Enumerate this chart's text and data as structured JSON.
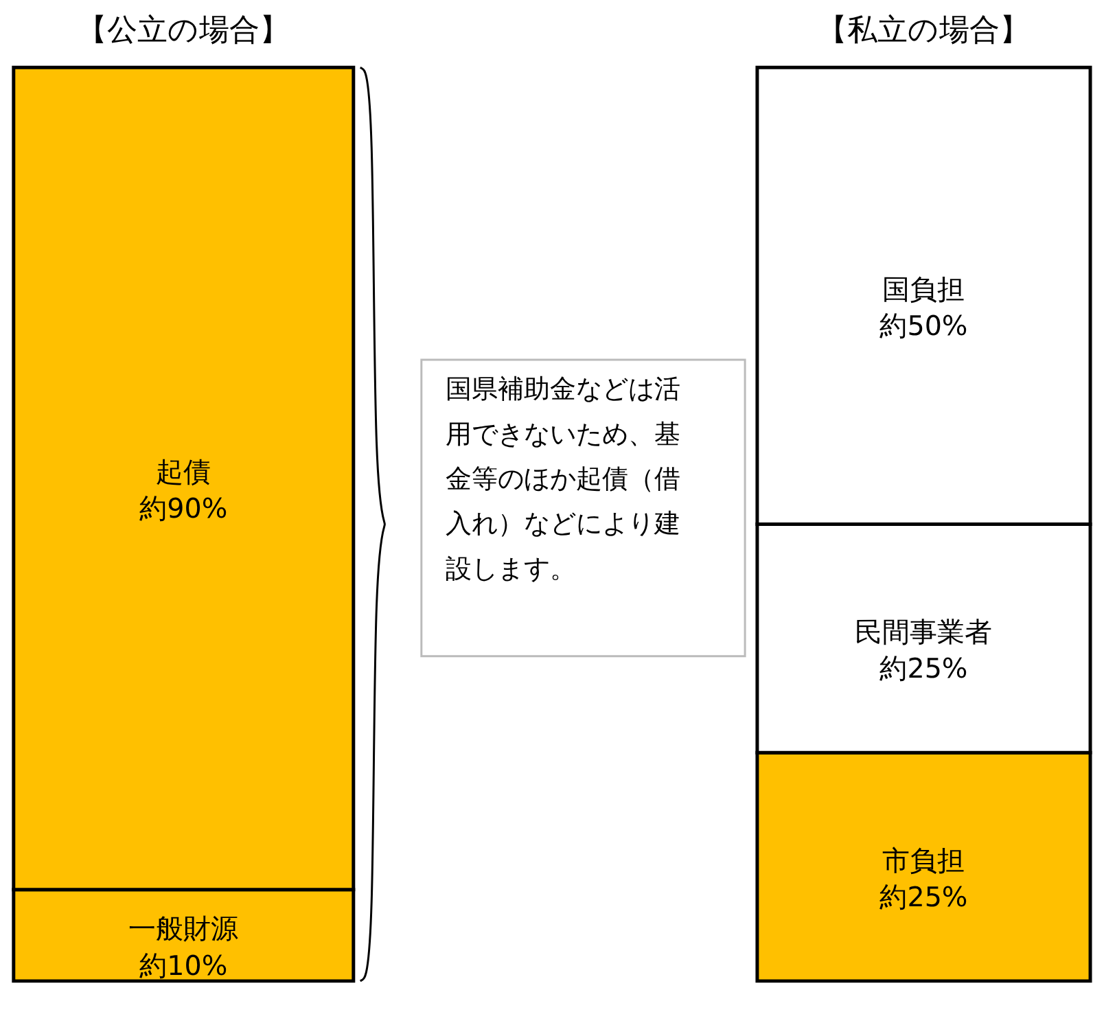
{
  "chart_data": [
    {
      "type": "bar",
      "stacked": true,
      "title": "【公立の場合】",
      "categories": [
        null
      ],
      "series": [
        {
          "name": "一般財源",
          "color": "#ffc000",
          "values": [
            10
          ],
          "value_labels": [
            "約10%"
          ]
        },
        {
          "name": "起債",
          "color": "#ffc000",
          "values": [
            90
          ],
          "value_labels": [
            "約90%"
          ]
        }
      ],
      "annotations": [
        "国県補助金などは活用できないため、基金等のほか起債（借入れ）などにより建設します。"
      ]
    },
    {
      "type": "bar",
      "stacked": true,
      "title": "【私立の場合】",
      "categories": [
        null
      ],
      "series": [
        {
          "name": "市負担",
          "color": "#ffc000",
          "values": [
            25
          ],
          "value_labels": [
            "約25%"
          ]
        },
        {
          "name": "民間事業者",
          "color": "#ffffff",
          "values": [
            25
          ],
          "value_labels": [
            "約25%"
          ]
        },
        {
          "name": "国負担",
          "color": "#ffffff",
          "values": [
            50
          ],
          "value_labels": [
            "約50%"
          ]
        }
      ]
    }
  ]
}
